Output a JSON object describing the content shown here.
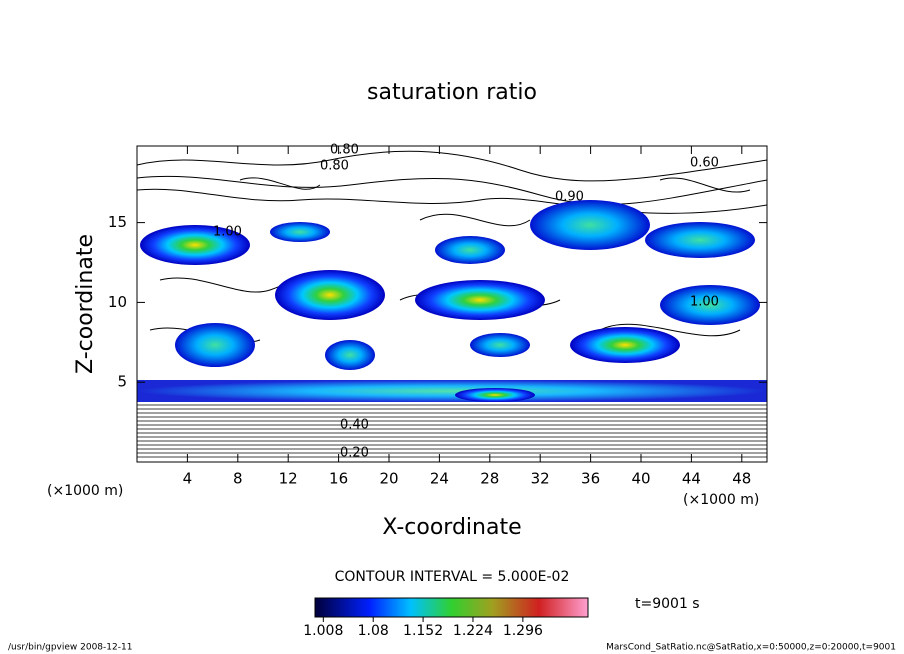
{
  "chart_data": {
    "type": "contour",
    "title": "saturation ratio",
    "x_label": "X-coordinate",
    "y_label": "Z-coordinate",
    "x_unit": "(×1000 m)",
    "xlim": [
      0,
      50
    ],
    "xticks": [
      4,
      8,
      12,
      16,
      20,
      24,
      28,
      32,
      36,
      40,
      44,
      48
    ],
    "ylim": [
      0,
      19.8
    ],
    "yticks": [
      5,
      10,
      15
    ],
    "contour_interval": "CONTOUR INTERVAL = 5.000E-02",
    "contour_labels": [
      "0.80",
      "0.60",
      "0.90",
      "1.00",
      "0.20",
      "0.40"
    ],
    "colorbar": {
      "clim": [
        0.996,
        1.39
      ],
      "ticks": [
        1.008,
        1.08,
        {
          "value": 1.152,
          "label": "1.152"
        },
        1.224,
        1.296
      ]
    },
    "time_label": "t=9001 s",
    "footer_left": "/usr/bin/gpview  2008-12-11",
    "footer_right": "MarsCond_SatRatio.nc@SatRatio,x=0:50000,z=0:20000,t=9001"
  }
}
